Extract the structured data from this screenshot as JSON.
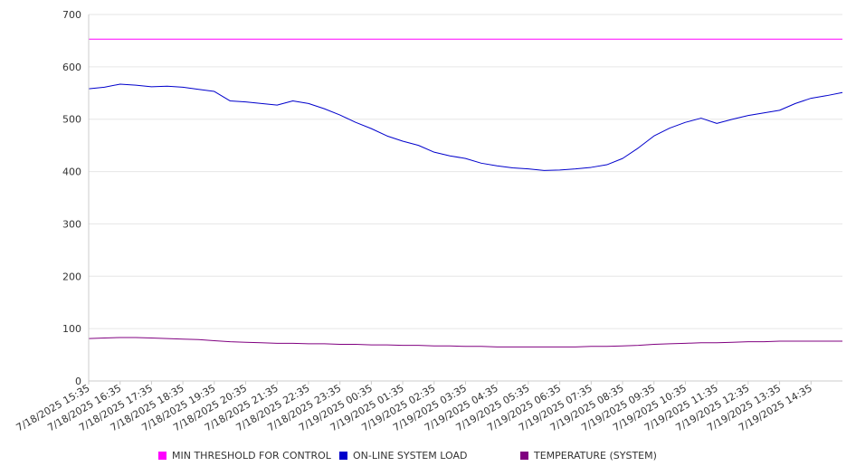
{
  "chart_data": {
    "type": "line",
    "ylim": [
      0,
      700
    ],
    "y_ticks": [
      "0",
      "100",
      "200",
      "300",
      "400",
      "500",
      "600",
      "700"
    ],
    "x_tick_labels": [
      "7/18/2025 15:35",
      "7/18/2025 16:35",
      "7/18/2025 17:35",
      "7/18/2025 18:35",
      "7/18/2025 19:35",
      "7/18/2025 20:35",
      "7/18/2025 21:35",
      "7/18/2025 22:35",
      "7/18/2025 23:35",
      "7/19/2025 00:35",
      "7/19/2025 01:35",
      "7/19/2025 02:35",
      "7/19/2025 03:35",
      "7/19/2025 04:35",
      "7/19/2025 05:35",
      "7/19/2025 06:35",
      "7/19/2025 07:35",
      "7/19/2025 08:35",
      "7/19/2025 09:35",
      "7/19/2025 10:35",
      "7/19/2025 11:35",
      "7/19/2025 12:35",
      "7/19/2025 13:35",
      "7/19/2025 14:35"
    ],
    "x_hours": [
      0,
      0.5,
      1,
      1.5,
      2,
      2.5,
      3,
      3.5,
      4,
      4.5,
      5,
      5.5,
      6,
      6.5,
      7,
      7.5,
      8,
      8.5,
      9,
      9.5,
      10,
      10.5,
      11,
      11.5,
      12,
      12.5,
      13,
      13.5,
      14,
      14.5,
      15,
      15.5,
      16,
      16.5,
      17,
      17.5,
      18,
      18.5,
      19,
      19.5,
      20,
      20.5,
      21,
      21.5,
      22,
      22.5,
      23,
      23.5,
      24
    ],
    "grid": true,
    "legend_position": "bottom",
    "series": [
      {
        "name": "MIN THRESHOLD FOR CONTROL",
        "color": "#ff00ff",
        "values": [
          653,
          653,
          653,
          653,
          653,
          653,
          653,
          653,
          653,
          653,
          653,
          653,
          653,
          653,
          653,
          653,
          653,
          653,
          653,
          653,
          653,
          653,
          653,
          653,
          653,
          653,
          653,
          653,
          653,
          653,
          653,
          653,
          653,
          653,
          653,
          653,
          653,
          653,
          653,
          653,
          653,
          653,
          653,
          653,
          653,
          653,
          653,
          653,
          653
        ]
      },
      {
        "name": "ON-LINE SYSTEM LOAD",
        "color": "#0000cc",
        "values": [
          558,
          561,
          567,
          565,
          562,
          563,
          561,
          557,
          553,
          535,
          533,
          530,
          527,
          535,
          530,
          520,
          508,
          494,
          482,
          468,
          458,
          450,
          437,
          430,
          425,
          416,
          411,
          407,
          405,
          402,
          403,
          405,
          408,
          413,
          425,
          445,
          468,
          483,
          494,
          502,
          492,
          500,
          507,
          512,
          517,
          530,
          540,
          545,
          551
        ]
      },
      {
        "name": "TEMPERATURE (SYSTEM)",
        "color": "#800080",
        "values": [
          81,
          82,
          83,
          83,
          82,
          81,
          80,
          79,
          77,
          75,
          74,
          73,
          72,
          72,
          71,
          71,
          70,
          70,
          69,
          69,
          68,
          68,
          67,
          67,
          66,
          66,
          65,
          65,
          65,
          65,
          65,
          65,
          66,
          66,
          67,
          68,
          70,
          71,
          72,
          73,
          73,
          74,
          75,
          75,
          76,
          76,
          76,
          76,
          76
        ]
      }
    ]
  }
}
